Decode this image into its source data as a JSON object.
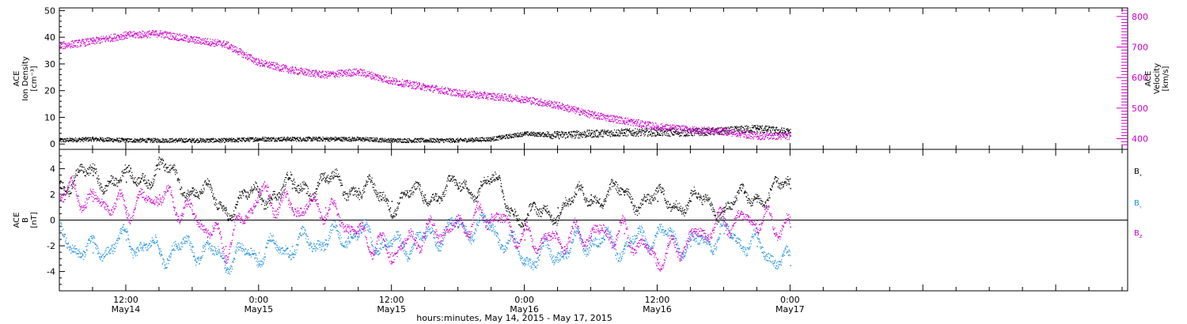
{
  "chart_data": [
    {
      "type": "scatter",
      "panel": "top",
      "title": "",
      "x_axis": {
        "label": "hours:minutes, May 14, 2015 - May 17, 2015",
        "range_hours_from_May14_00": [
          6,
          102.5
        ],
        "ticks": [
          {
            "h": 12,
            "time": "12:00",
            "date": "May14"
          },
          {
            "h": 24,
            "time": "0:00",
            "date": "May15"
          },
          {
            "h": 36,
            "time": "12:00",
            "date": "May15"
          },
          {
            "h": 48,
            "time": "0:00",
            "date": "May16"
          },
          {
            "h": 60,
            "time": "12:00",
            "date": "May16"
          },
          {
            "h": 72,
            "time": "0:00",
            "date": "May17"
          }
        ]
      },
      "y_left": {
        "label": [
          "ACE",
          "Ion Density",
          "[cm⁻³]"
        ],
        "ylim": [
          -2,
          51
        ],
        "ticks": [
          0,
          10,
          20,
          30,
          40,
          50
        ],
        "color": "#000000"
      },
      "y_right": {
        "label": [
          "ACE",
          "Velocity",
          "[km/s]"
        ],
        "ylim": [
          365,
          828
        ],
        "ticks": [
          400,
          500,
          600,
          700,
          800
        ],
        "color": "#cc00cc"
      },
      "series": [
        {
          "axis": "left",
          "color": "#000000",
          "x": [
            6,
            9,
            12,
            15,
            18,
            21,
            24,
            27,
            30,
            33,
            36,
            39,
            42,
            45,
            48,
            51,
            54,
            57,
            60,
            63,
            66,
            69,
            72
          ],
          "y": [
            1.5,
            2,
            1.5,
            1.5,
            1.5,
            1.5,
            2,
            2,
            2,
            2,
            1.5,
            1.5,
            1.5,
            2,
            4,
            3.5,
            4,
            4.5,
            4.5,
            4.5,
            5,
            6,
            4.5
          ]
        },
        {
          "axis": "right",
          "color": "#cc00cc",
          "x": [
            6,
            9,
            12,
            15,
            18,
            21,
            24,
            27,
            30,
            33,
            36,
            39,
            42,
            45,
            48,
            51,
            54,
            57,
            60,
            63,
            66,
            69,
            72
          ],
          "y": [
            705,
            720,
            740,
            745,
            725,
            710,
            650,
            625,
            610,
            620,
            590,
            570,
            550,
            540,
            530,
            510,
            480,
            460,
            440,
            430,
            425,
            410,
            410
          ]
        }
      ]
    },
    {
      "type": "scatter",
      "panel": "bottom",
      "title": "",
      "y_left": {
        "label": [
          "ACE",
          "B",
          "[nT]"
        ],
        "ylim": [
          -5.5,
          5.5
        ],
        "ticks": [
          -4,
          -2,
          0,
          2,
          4
        ]
      },
      "legend": [
        "Bₓ",
        "Bᵧ",
        "B_z"
      ],
      "series": [
        {
          "name": "Bₓ",
          "color": "#000000",
          "x": [
            6,
            9,
            12,
            15,
            18,
            21,
            24,
            27,
            30,
            33,
            36,
            39,
            42,
            45,
            48,
            51,
            54,
            57,
            60,
            63,
            66,
            69,
            72
          ],
          "y": [
            3,
            3.5,
            3,
            4,
            2.5,
            1,
            2,
            2.5,
            3,
            2.5,
            1.5,
            2,
            2.5,
            3,
            0,
            1,
            2,
            2,
            1.5,
            1.5,
            1,
            2,
            2.5
          ]
        },
        {
          "name": "Bᵧ",
          "color": "#1e90e0",
          "x": [
            6,
            9,
            12,
            15,
            18,
            21,
            24,
            27,
            30,
            33,
            36,
            39,
            42,
            45,
            48,
            51,
            54,
            57,
            60,
            63,
            66,
            69,
            72
          ],
          "y": [
            -1.5,
            -2.5,
            -1.5,
            -2.5,
            -2,
            -3,
            -2.5,
            -2,
            -1.5,
            -1,
            -2,
            -1.5,
            -0.5,
            -0.5,
            -3,
            -2.5,
            -1.5,
            -2,
            -1,
            -2,
            -1,
            -2,
            -3.5
          ]
        },
        {
          "name": "B_z",
          "color": "#cc00cc",
          "x": [
            6,
            9,
            12,
            15,
            18,
            21,
            24,
            27,
            30,
            33,
            36,
            39,
            42,
            45,
            48,
            51,
            54,
            57,
            60,
            63,
            66,
            69,
            72
          ],
          "y": [
            2.5,
            1.5,
            1,
            2,
            0.5,
            -2,
            2,
            1,
            1,
            -1,
            -2.5,
            -1,
            -0.5,
            0.5,
            -1.5,
            -1.5,
            -1,
            -1,
            -3,
            -1.5,
            0,
            0,
            -0.5
          ]
        }
      ]
    }
  ]
}
